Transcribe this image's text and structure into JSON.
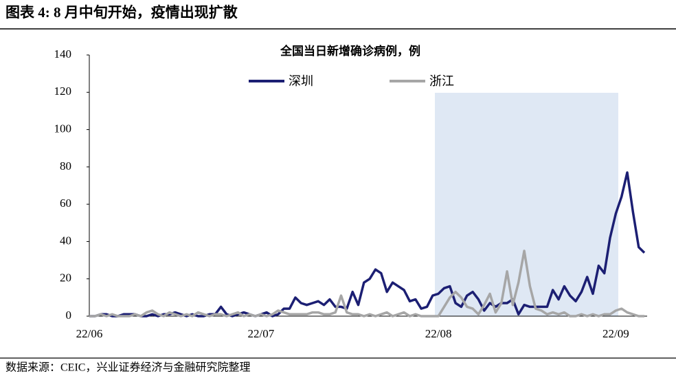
{
  "header": {
    "title": "图表 4: 8 月中旬开始，疫情出现扩散"
  },
  "source": "数据来源：CEIC，兴业证券经济与金融研究院整理",
  "chart_data": {
    "type": "line",
    "title": "全国当日新增确诊病例，例",
    "categories": [
      "22/06",
      null,
      null,
      null,
      null,
      null,
      null,
      null,
      null,
      null,
      null,
      null,
      null,
      null,
      null,
      null,
      null,
      null,
      null,
      null,
      null,
      null,
      null,
      null,
      null,
      null,
      null,
      null,
      null,
      null,
      "22/07",
      null,
      null,
      null,
      null,
      null,
      null,
      null,
      null,
      null,
      null,
      null,
      null,
      null,
      null,
      null,
      null,
      null,
      null,
      null,
      null,
      null,
      null,
      null,
      null,
      null,
      null,
      null,
      null,
      null,
      null,
      "22/08",
      null,
      null,
      null,
      null,
      null,
      null,
      null,
      null,
      null,
      null,
      null,
      null,
      null,
      null,
      null,
      null,
      null,
      null,
      null,
      null,
      null,
      null,
      null,
      null,
      null,
      null,
      null,
      null,
      null,
      null,
      "22/09",
      null,
      null,
      null,
      null,
      null
    ],
    "series": [
      {
        "name": "深圳",
        "color": "#1c1f73",
        "values": [
          0,
          0,
          1,
          1,
          0,
          0,
          1,
          1,
          1,
          0,
          0,
          1,
          0,
          1,
          1,
          2,
          1,
          0,
          1,
          0,
          0,
          1,
          1,
          5,
          1,
          0,
          1,
          2,
          1,
          0,
          1,
          2,
          0,
          1,
          4,
          4,
          10,
          7,
          6,
          7,
          8,
          6,
          9,
          5,
          5,
          4,
          13,
          6,
          18,
          20,
          25,
          23,
          13,
          18,
          16,
          14,
          8,
          9,
          4,
          5,
          11,
          12,
          15,
          16,
          7,
          5,
          11,
          13,
          9,
          3,
          7,
          5,
          7,
          7,
          9,
          1,
          6,
          5,
          5,
          5,
          5,
          14,
          9,
          16,
          11,
          8,
          13,
          21,
          12,
          27,
          23,
          42,
          55,
          64,
          77,
          56,
          37,
          34
        ]
      },
      {
        "name": "浙江",
        "color": "#a6a6a6",
        "values": [
          0,
          0,
          1,
          0,
          1,
          0,
          0,
          0,
          1,
          0,
          2,
          3,
          1,
          0,
          2,
          1,
          0,
          1,
          0,
          2,
          1,
          0,
          1,
          1,
          0,
          1,
          2,
          0,
          1,
          0,
          1,
          0,
          1,
          3,
          2,
          1,
          1,
          1,
          1,
          2,
          2,
          1,
          1,
          2,
          11,
          2,
          1,
          1,
          0,
          1,
          0,
          1,
          2,
          0,
          1,
          2,
          0,
          1,
          0,
          0,
          0,
          0,
          5,
          10,
          13,
          10,
          5,
          4,
          1,
          6,
          12,
          2,
          7,
          24,
          6,
          18,
          35,
          16,
          4,
          3,
          1,
          2,
          1,
          2,
          0,
          0,
          1,
          0,
          1,
          0,
          1,
          1,
          3,
          4,
          2,
          1,
          0,
          0
        ]
      }
    ],
    "ylim": [
      0,
      140
    ],
    "yticks": [
      0,
      20,
      40,
      60,
      80,
      100,
      120,
      140
    ],
    "grid": false
  }
}
